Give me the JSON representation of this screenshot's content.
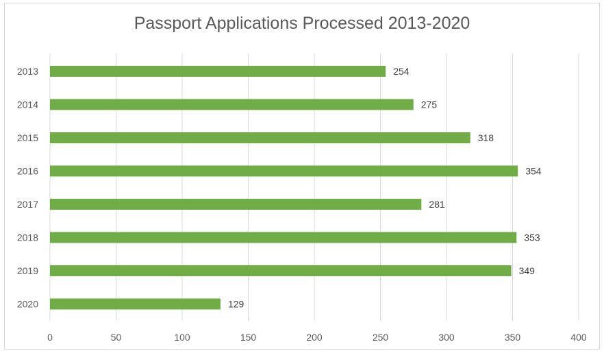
{
  "chart_data": {
    "type": "bar",
    "orientation": "horizontal",
    "title": "Passport Applications Processed 2013-2020",
    "xlabel": "",
    "ylabel": "",
    "categories": [
      "2013",
      "2014",
      "2015",
      "2016",
      "2017",
      "2018",
      "2019",
      "2020"
    ],
    "values": [
      254,
      275,
      318,
      354,
      281,
      353,
      349,
      129
    ],
    "xlim": [
      0,
      400
    ],
    "xticks": [
      0,
      50,
      100,
      150,
      200,
      250,
      300,
      350,
      400
    ],
    "grid": "vertical",
    "legend": "none",
    "data_labels": true,
    "bar_color": "#70ad47",
    "grid_color": "#d9d9d9",
    "text_color": "#595959"
  }
}
